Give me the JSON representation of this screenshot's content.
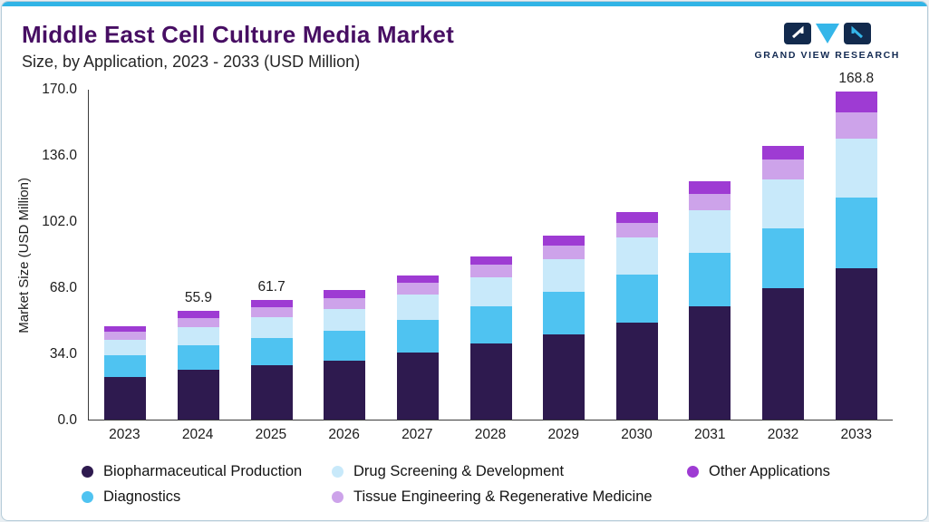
{
  "header": {
    "title": "Middle East Cell Culture Media Market",
    "subtitle": "Size, by Application, 2023 - 2033 (USD Million)",
    "logo_text": "GRAND VIEW RESEARCH"
  },
  "chart_data": {
    "type": "bar",
    "stacked": true,
    "title": "Middle East Cell Culture Media Market Size, by Application, 2023 - 2033 (USD Million)",
    "xlabel": "",
    "ylabel": "Market Size (USD Million)",
    "ylim": [
      0,
      170
    ],
    "yticks": [
      "0.0",
      "34.0",
      "68.0",
      "102.0",
      "136.0",
      "170.0"
    ],
    "grid": false,
    "legend_position": "bottom",
    "categories": [
      "2023",
      "2024",
      "2025",
      "2026",
      "2027",
      "2028",
      "2029",
      "2030",
      "2031",
      "2032",
      "2033"
    ],
    "series": [
      {
        "name": "Biopharmaceutical Production",
        "color": "#2e1a4f",
        "values": [
          22.0,
          25.5,
          28.0,
          30.5,
          34.5,
          39.0,
          44.0,
          50.0,
          58.0,
          67.5,
          78.0
        ]
      },
      {
        "name": "Diagnostics",
        "color": "#4fc3f1",
        "values": [
          11.0,
          12.6,
          14.0,
          15.0,
          16.8,
          19.0,
          21.5,
          24.3,
          27.5,
          31.0,
          36.0
        ]
      },
      {
        "name": "Drug Screening & Development",
        "color": "#c8e9fa",
        "values": [
          8.0,
          9.5,
          10.5,
          11.5,
          13.0,
          15.0,
          17.0,
          19.5,
          22.0,
          25.0,
          30.5
        ]
      },
      {
        "name": "Tissue Engineering & Regenerative Medicine",
        "color": "#cda3ea",
        "values": [
          4.0,
          4.8,
          5.2,
          5.5,
          6.0,
          6.5,
          7.1,
          7.5,
          8.5,
          10.1,
          13.5
        ]
      },
      {
        "name": "Other Applications",
        "color": "#9e3bd3",
        "values": [
          3.0,
          3.5,
          4.0,
          4.0,
          4.0,
          4.5,
          5.0,
          5.5,
          6.5,
          7.0,
          10.8
        ]
      }
    ],
    "totals": [
      48.0,
      55.9,
      61.7,
      66.5,
      74.3,
      84.0,
      94.6,
      106.8,
      122.5,
      140.6,
      168.8
    ],
    "total_labels": {
      "2024": "55.9",
      "2025": "61.7",
      "2033": "168.8"
    },
    "legend_order": [
      0,
      2,
      4,
      1,
      3
    ],
    "colors": {
      "accent_bar": "#31b4e6",
      "title": "#470e63",
      "axis": "#3c3c3c"
    }
  }
}
